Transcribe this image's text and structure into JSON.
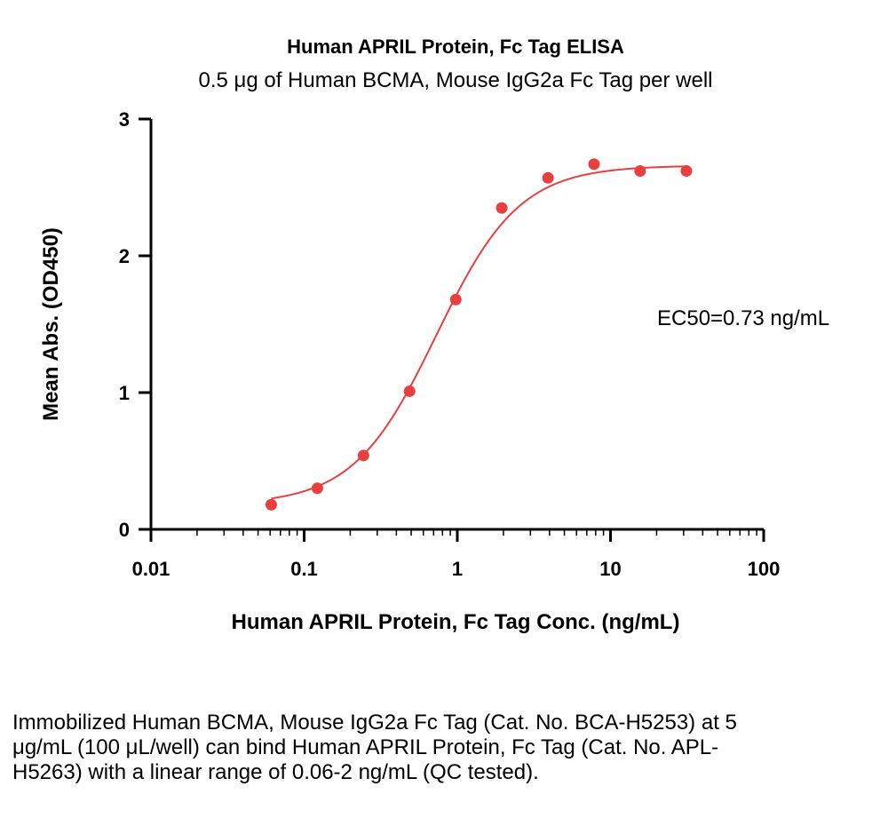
{
  "chart_data": {
    "type": "scatter",
    "title": "Human APRIL Protein, Fc Tag ELISA",
    "subtitle": "0.5 μg of Human BCMA, Mouse IgG2a Fc Tag per well",
    "xlabel": "Human APRIL Protein, Fc Tag Conc. (ng/mL)",
    "ylabel": "Mean Abs. (OD450)",
    "xscale": "log",
    "xlim": [
      0.01,
      100
    ],
    "ylim": [
      0,
      3
    ],
    "x_ticks": [
      0.01,
      0.1,
      1,
      10,
      100
    ],
    "x_tick_labels": [
      "0.01",
      "0.1",
      "1",
      "10",
      "100"
    ],
    "y_ticks": [
      0,
      1,
      2,
      3
    ],
    "y_tick_labels": [
      "0",
      "1",
      "2",
      "3"
    ],
    "grid": false,
    "points": {
      "x": [
        0.061,
        0.122,
        0.244,
        0.488,
        0.977,
        1.95,
        3.91,
        7.81,
        15.6,
        31.3
      ],
      "y": [
        0.18,
        0.3,
        0.54,
        1.01,
        1.68,
        2.35,
        2.57,
        2.67,
        2.62,
        2.62
      ]
    },
    "fit": {
      "model": "4PL",
      "bottom": 0.18,
      "top": 2.66,
      "ec50": 0.73,
      "hill": 1.6
    },
    "annotation": "EC50=0.73 ng/mL",
    "colors": {
      "series": "#e8403f",
      "axis": "#000000"
    }
  },
  "caption": "Immobilized Human BCMA, Mouse IgG2a Fc Tag (Cat. No. BCA-H5253) at 5 μg/mL (100 μL/well) can bind Human APRIL Protein, Fc Tag (Cat. No. APL-H5263) with a linear range of 0.06-2 ng/mL (QC tested)."
}
